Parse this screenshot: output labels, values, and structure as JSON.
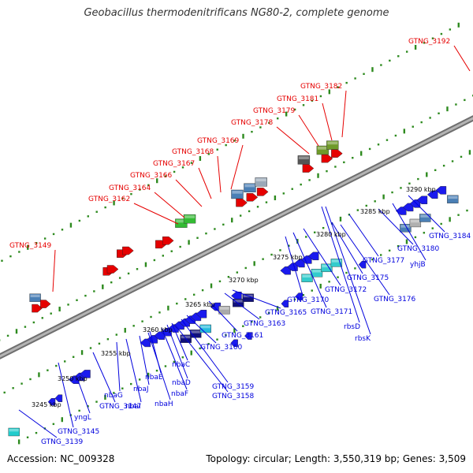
{
  "title": "Geobacillus thermodenitrificans NG80-2, complete genome",
  "footer": {
    "accession": "Accession: NC_009328",
    "summary": "Topology: circular; Length: 3,550,319 bp; Genes: 3,509"
  },
  "colors": {
    "backbone": "#8c8c8c",
    "tick": "#2d8a1e",
    "label_top": "#e60000",
    "label_bottom": "#0000dd",
    "ruler_text": "#000000"
  },
  "ruler": [
    "3245 kbp",
    "3250 kbp",
    "3255 kbp",
    "3260 kbp",
    "3265 kbp",
    "3270 kbp",
    "3275 kbp",
    "3280 kbp",
    "3285 kbp",
    "3290 kbp"
  ],
  "top_labels": [
    "GTNG_3149",
    "GTNG_3162",
    "GTNG_3164",
    "GTNG_3166",
    "GTNG_3167",
    "GTNG_3168",
    "GTNG_3169",
    "GTNG_3178",
    "GTNG_3179",
    "GTNG_3181",
    "GTNG_3182",
    "GTNG_3192"
  ],
  "bottom_labels": [
    "GTNG_3139",
    "GTNG_3145",
    "yngL",
    "GTNG_3147",
    "nbaG",
    "nbaI",
    "nbaJ",
    "nbaH",
    "nbaE",
    "nbaF",
    "nbaD",
    "nbaC",
    "GTNG_3159",
    "GTNG_3158",
    "GTNG_3160",
    "GTNG_3161",
    "GTNG_3163",
    "GTNG_3165",
    "GTNG_3170",
    "GTNG_3171",
    "GTNG_3172",
    "rbsD",
    "rbsK",
    "GTNG_3175",
    "GTNG_3176",
    "GTNG_3177",
    "GTNG_3180",
    "yhjB",
    "GTNG_3184"
  ]
}
